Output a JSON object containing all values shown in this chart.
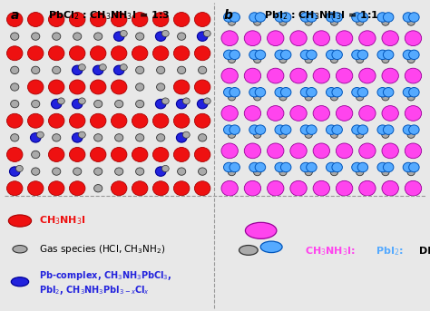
{
  "fig_width": 4.74,
  "fig_height": 3.43,
  "dpi": 100,
  "bg_color": "#e8e8e8",
  "panel_bg": "#f5f5f5",
  "red_color": "#ee1111",
  "red_edge": "#aa0000",
  "blue_color": "#2222dd",
  "blue_edge": "#000099",
  "magenta_color": "#ff44ee",
  "magenta_edge": "#990099",
  "cyan_color": "#55aaff",
  "cyan_edge": "#0055bb",
  "dark_fc": "#aaaaaa",
  "dark_ec": "#333333",
  "title_a": "PbCl$_2$ : CH$_3$NH$_3$I = 1:3",
  "title_b": "PbI$_2$ : CH$_3$NH$_3$I = 1:1",
  "label_a": "a",
  "label_b": "b"
}
